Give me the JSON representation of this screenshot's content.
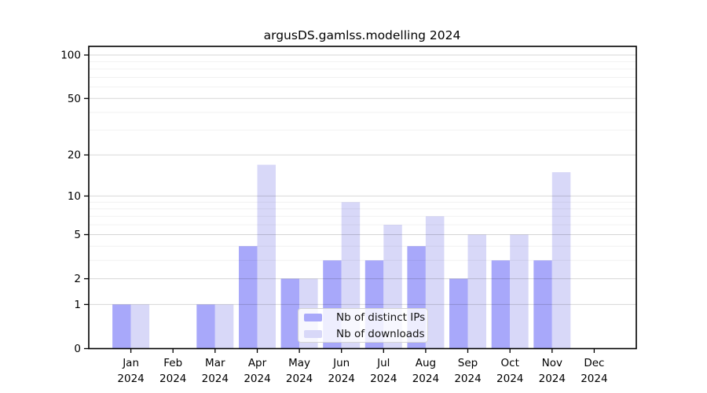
{
  "chart_data": {
    "type": "bar",
    "title": "argusDS.gamlss.modelling 2024",
    "categories": [
      "Jan",
      "Feb",
      "Mar",
      "Apr",
      "May",
      "Jun",
      "Jul",
      "Aug",
      "Sep",
      "Oct",
      "Nov",
      "Dec"
    ],
    "category_year": "2024",
    "series": [
      {
        "name": "Nb of distinct IPs",
        "color": "#a8a8fa",
        "values": [
          1,
          0,
          1,
          4,
          2,
          3,
          3,
          4,
          2,
          3,
          3,
          0
        ]
      },
      {
        "name": "Nb of downloads",
        "color": "#d8d8f8",
        "values": [
          1,
          0,
          1,
          17,
          2,
          9,
          6,
          7,
          5,
          5,
          15,
          0
        ]
      }
    ],
    "xlabel": "",
    "ylabel": "",
    "yscale": "log1p",
    "ylim": [
      0,
      115
    ],
    "yticks": [
      0,
      1,
      2,
      5,
      10,
      20,
      50,
      100
    ],
    "yticks_minor": [
      3,
      4,
      6,
      7,
      8,
      9,
      30,
      40,
      60,
      70,
      80,
      90
    ],
    "grid": "horizontal",
    "legend_position": "inside-bottom-center",
    "colors": {
      "axis": "#000000",
      "tick_label": "#000000",
      "grid_major": "rgba(0,0,0,0.16)",
      "grid_minor": "rgba(0,0,0,0.055)",
      "legend_background": "rgba(255,255,255,0.8)",
      "legend_border": "#d4d4d4"
    }
  }
}
